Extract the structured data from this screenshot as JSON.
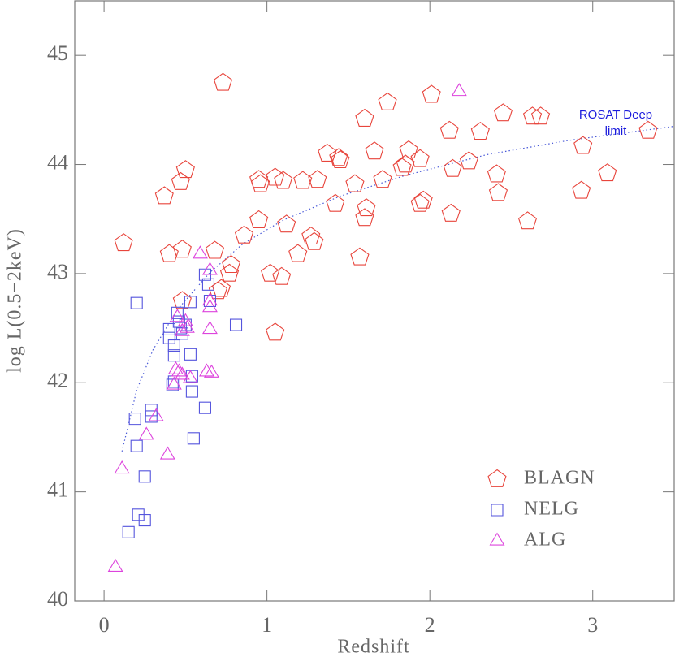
{
  "chart_data": {
    "type": "scatter",
    "xlabel": "Redshift",
    "ylabel": "log L(0.5−2keV)",
    "xlim": [
      -0.18,
      3.5
    ],
    "ylim": [
      40,
      45.5
    ],
    "xticks": [
      0,
      1,
      2,
      3
    ],
    "yticks": [
      40,
      41,
      42,
      43,
      44,
      45
    ],
    "legend": "lower right",
    "series": [
      {
        "name": "BLAGN",
        "color": "#e8453c",
        "marker": "pentagon",
        "x": [
          0.12,
          0.73,
          0.37,
          0.5,
          0.47,
          0.4,
          0.48,
          0.48,
          0.68,
          0.78,
          0.77,
          0.72,
          0.7,
          0.86,
          0.95,
          0.96,
          0.95,
          1.02,
          1.05,
          1.1,
          1.09,
          1.05,
          1.12,
          1.19,
          1.22,
          1.27,
          1.29,
          1.31,
          1.37,
          1.44,
          1.45,
          1.42,
          1.54,
          1.57,
          1.6,
          1.61,
          1.6,
          1.66,
          1.71,
          1.74,
          1.83,
          1.85,
          1.87,
          1.94,
          1.94,
          1.96,
          2.01,
          2.12,
          2.14,
          2.13,
          2.24,
          2.31,
          2.41,
          2.42,
          2.45,
          2.6,
          2.63,
          2.68,
          2.93,
          2.94,
          3.09,
          3.34
        ],
        "values": [
          43.28,
          44.75,
          43.71,
          43.95,
          43.84,
          43.18,
          43.22,
          42.75,
          43.21,
          43.08,
          43.0,
          42.86,
          42.84,
          43.35,
          43.86,
          43.82,
          43.49,
          43.0,
          43.88,
          43.85,
          42.97,
          42.46,
          43.45,
          43.18,
          43.85,
          43.34,
          43.29,
          43.86,
          44.1,
          44.06,
          44.04,
          43.64,
          43.82,
          43.15,
          43.51,
          43.6,
          44.42,
          44.12,
          43.86,
          44.57,
          43.97,
          44.0,
          44.13,
          44.05,
          43.64,
          43.67,
          44.64,
          44.31,
          43.96,
          43.55,
          44.03,
          44.3,
          43.91,
          43.74,
          44.47,
          43.48,
          44.44,
          44.44,
          43.76,
          44.17,
          43.92,
          44.31
        ]
      },
      {
        "name": "NELG",
        "color": "#5555dd",
        "marker": "square",
        "x": [
          0.2,
          0.19,
          0.2,
          0.25,
          0.21,
          0.25,
          0.15,
          0.29,
          0.29,
          0.4,
          0.4,
          0.43,
          0.43,
          0.43,
          0.42,
          0.45,
          0.46,
          0.47,
          0.48,
          0.5,
          0.53,
          0.53,
          0.54,
          0.54,
          0.55,
          0.62,
          0.62,
          0.64,
          0.65,
          0.81
        ],
        "values": [
          42.73,
          41.67,
          41.42,
          41.14,
          40.79,
          40.74,
          40.63,
          41.75,
          41.69,
          42.49,
          42.41,
          42.34,
          42.25,
          42.01,
          41.98,
          42.64,
          42.56,
          42.5,
          42.45,
          42.53,
          42.74,
          42.26,
          42.06,
          41.92,
          41.49,
          41.77,
          42.99,
          42.9,
          42.75,
          42.53
        ]
      },
      {
        "name": "ALG",
        "color": "#dd44dd",
        "marker": "triangle",
        "x": [
          0.07,
          0.11,
          0.26,
          0.32,
          0.39,
          0.43,
          0.44,
          0.46,
          0.48,
          0.45,
          0.48,
          0.5,
          0.51,
          0.53,
          0.59,
          0.63,
          0.66,
          0.65,
          0.65,
          0.65,
          0.65,
          2.18
        ],
        "values": [
          40.31,
          41.21,
          41.52,
          41.69,
          41.34,
          41.98,
          42.12,
          42.1,
          42.07,
          42.6,
          42.47,
          42.56,
          42.5,
          42.04,
          43.18,
          42.1,
          42.09,
          42.49,
          42.69,
          42.75,
          43.03,
          44.67
        ]
      }
    ],
    "curve": {
      "color": "#4a5ad8",
      "annotation": [
        "ROSAT Deep",
        "limit"
      ],
      "x": [
        0.11,
        0.2,
        0.3,
        0.45,
        0.65,
        0.85,
        1.1,
        1.45,
        1.85,
        2.35,
        2.85,
        3.5
      ],
      "values": [
        41.37,
        41.93,
        42.3,
        42.67,
        43.01,
        43.27,
        43.49,
        43.71,
        43.9,
        44.09,
        44.22,
        44.35
      ]
    }
  }
}
